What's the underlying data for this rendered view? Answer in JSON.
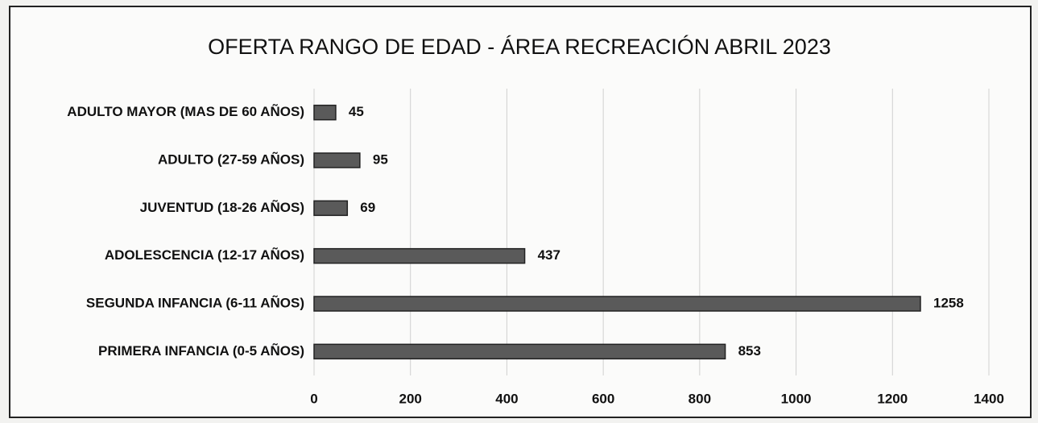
{
  "chart_data": {
    "type": "hbar",
    "title": "OFERTA RANGO DE EDAD - ÁREA RECREACIÓN ABRIL 2023",
    "categories": [
      "ADULTO MAYOR (MAS DE 60 AÑOS)",
      "ADULTO (27-59 AÑOS)",
      "JUVENTUD (18-26 AÑOS)",
      "ADOLESCENCIA (12-17 AÑOS)",
      "SEGUNDA INFANCIA (6-11 AÑOS)",
      "PRIMERA INFANCIA (0-5 AÑOS)"
    ],
    "values": [
      45,
      95,
      69,
      437,
      1258,
      853
    ],
    "color": "#5a5a5a",
    "xlim": [
      0,
      1400
    ],
    "xticks": [
      0,
      200,
      400,
      600,
      800,
      1000,
      1200,
      1400
    ],
    "grid": true
  }
}
